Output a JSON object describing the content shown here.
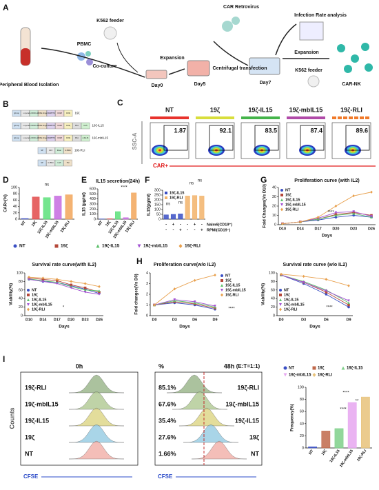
{
  "figure": {
    "panel_labels": [
      "A",
      "B",
      "C",
      "D",
      "E",
      "F",
      "G",
      "H",
      "I"
    ],
    "workflow": {
      "blood": "Peripheral Blood Isolation",
      "pbmc": "PBMC",
      "feeder1": "K562 feeder",
      "coculture": "Co-culture",
      "day0": "Day0",
      "expansion1": "Expansion",
      "day5": "Day5",
      "retrovirus": "CAR Retrovirus",
      "transfection": "Centrifugal transfection",
      "day7": "Day7",
      "analysis": "Infection Rate analysis",
      "expansion2": "Expansion",
      "feeder2": "K562 feeder",
      "car_nk": "CAR-NK"
    },
    "constructs": {
      "rows": [
        {
          "segments": [
            "IgG sp",
            "c-myc",
            "anti-CD19 scFv",
            "CD8a hinge",
            "CD28 TM",
            "CD28",
            "CD3ζ"
          ],
          "label": "19ζ"
        },
        {
          "segments": [
            "IgG sp",
            "c-myc",
            "anti-CD19 scFv",
            "CD8a hinge",
            "CD28 TM",
            "CD28",
            "CD3ζ",
            "P2A",
            "IL15"
          ],
          "label": "19ζ-IL15"
        },
        {
          "segments": [
            "IgG sp",
            "c-myc",
            "anti-CD19 scFv",
            "CD8a hinge",
            "CD28 TM",
            "CD28",
            "CD3ζ",
            "P2A",
            "mbIL15"
          ],
          "label": "19ζ-mbIL15"
        },
        {
          "segments": [
            "SP",
            "IL15",
            "linker",
            "IL15Rα"
          ],
          "label": "19ζ-RLI"
        },
        {
          "segments": [
            "SP",
            "IL15Rα",
            "IL15",
            "TM"
          ]
        }
      ]
    },
    "flow": {
      "titles": [
        "NT",
        "19ζ",
        "19ζ-IL15",
        "19ζ-mbIL15",
        "19ζ-RLI"
      ],
      "values": [
        1.87,
        92.1,
        83.5,
        87.4,
        89.6
      ],
      "bar_colors": [
        "#e8322c",
        "#d8de3c",
        "#44b44a",
        "#b04aa8",
        "#f07a2a"
      ],
      "y_axis": "SSC-A",
      "x_axis": "CAR+"
    },
    "legend": {
      "names": [
        "NT",
        "19ζ",
        "19ζ-IL15",
        "19ζ-mbIL15",
        "19ζ-RLI"
      ],
      "colors": [
        "#3a4fc4",
        "#b5483a",
        "#5cc06a",
        "#a14fd1",
        "#e8a04d"
      ],
      "markers": [
        "circle",
        "square",
        "triangle",
        "triangle-down",
        "diamond"
      ]
    },
    "histograms": {
      "rows": [
        "19ζ-RLI",
        "19ζ-mbIL15",
        "19ζ-IL15",
        "19ζ",
        "NT"
      ],
      "colors": [
        "#8fae7e",
        "#a9c48a",
        "#d9d27a",
        "#8cc7e0",
        "#f0a8a0"
      ],
      "y_axis": "Counts",
      "x_axis": "CFSE",
      "left": {
        "title": "0h"
      },
      "right": {
        "title": "48h",
        "percent_header": "%",
        "ratio": "(E:T=1:1)",
        "percents": [
          "85.1%",
          "67.6%",
          "35.4%",
          "27.6%",
          "1.66%"
        ]
      }
    }
  },
  "chart_data": [
    {
      "type": "bar",
      "ylabel": "CAR+(%)",
      "categories": [
        "NT",
        "19ζ",
        "19ζ-IL15",
        "19ζ-mbIL15",
        "19ζ-RLI"
      ],
      "values": [
        2,
        70,
        68,
        73,
        77
      ],
      "colors": [
        "#3a4fc4",
        "#e24a4a",
        "#5ce07a",
        "#c56ae0",
        "#f2a65a"
      ],
      "ylim": [
        0,
        100
      ],
      "yticks": [
        0,
        20,
        40,
        60,
        80,
        100
      ],
      "annotations": [
        "ns"
      ]
    },
    {
      "type": "bar",
      "title": "IL15 secretion(24h)",
      "ylabel": "IL15 (pg/ml)",
      "categories": [
        "NT",
        "19ζ",
        "19ζ-IL15",
        "19ζ-mbIL15",
        "19ζ-RLI"
      ],
      "values": [
        5,
        8,
        150,
        30,
        520
      ],
      "colors": [
        "#3a4fc4",
        "#e24a4a",
        "#5ce07a",
        "#c56ae0",
        "#f2a65a"
      ],
      "ylim": [
        0,
        600
      ],
      "yticks": [
        0,
        100,
        200,
        300,
        400,
        500,
        600
      ],
      "annotations": [
        "****"
      ]
    },
    {
      "type": "bar",
      "ylabel": "IL15(pg/ml)",
      "series": [
        {
          "name": "19ζ-IL15",
          "color": "#3a4fc4",
          "values": [
            45,
            50,
            55,
            null,
            null,
            null
          ]
        },
        {
          "name": "19ζ-RLI",
          "color": "#f2b36a",
          "values": [
            null,
            null,
            null,
            240,
            245,
            240
          ]
        }
      ],
      "ylim": [
        0,
        300
      ],
      "yticks": [
        0,
        50,
        100,
        150,
        200,
        250,
        300
      ],
      "legend": "upper left",
      "condition_rows": [
        {
          "label": "Nalm6(CD19⁺)",
          "signs": [
            "-",
            "+",
            "-",
            "-",
            "+",
            "-"
          ]
        },
        {
          "label": "RPMI(CD19⁻)",
          "signs": [
            "-",
            "-",
            "+",
            "-",
            "-",
            "+"
          ]
        }
      ],
      "annotations": [
        "ns",
        "ns",
        "ns",
        "ns"
      ]
    },
    {
      "type": "line",
      "title": "Proliferation curve (with IL2)",
      "ylabel": "Fold Changes(Vs D10)",
      "xlabel": "Days",
      "categories": [
        "D10",
        "D14",
        "D17",
        "D20",
        "D23",
        "D26"
      ],
      "ylim": [
        0,
        40
      ],
      "yticks": [
        0,
        10,
        20,
        30,
        40
      ],
      "legend": "upper left",
      "annotations": [
        "****"
      ],
      "series": [
        {
          "name": "NT",
          "color": "#3a4fc4",
          "marker": "circle",
          "values": [
            1,
            3,
            5,
            8,
            10,
            8
          ]
        },
        {
          "name": "19ζ",
          "color": "#b5483a",
          "marker": "square",
          "values": [
            1,
            3,
            6,
            11,
            13,
            10
          ]
        },
        {
          "name": "19ζ-IL15",
          "color": "#5cc06a",
          "marker": "triangle",
          "values": [
            1,
            3,
            6,
            10,
            12,
            8
          ]
        },
        {
          "name": "19ζ-mbIL15",
          "color": "#a14fd1",
          "marker": "triangle-down",
          "values": [
            1,
            3,
            7,
            13,
            14,
            9
          ]
        },
        {
          "name": "19ζ-RLI",
          "color": "#e8a04d",
          "marker": "diamond",
          "values": [
            1,
            3,
            8,
            20,
            31,
            35
          ]
        }
      ]
    },
    {
      "type": "line",
      "title": "Survival rate curve(with IL2)",
      "ylabel": "Viability(%)",
      "xlabel": "Days",
      "categories": [
        "D10",
        "D14",
        "D17",
        "D20",
        "D23",
        "D26"
      ],
      "ylim": [
        0,
        100
      ],
      "yticks": [
        0,
        20,
        40,
        60,
        80,
        100
      ],
      "legend": "lower left",
      "annotations": [
        "*"
      ],
      "series": [
        {
          "name": "NT",
          "color": "#3a4fc4",
          "marker": "circle",
          "values": [
            85,
            80,
            78,
            70,
            62,
            52
          ]
        },
        {
          "name": "19ζ",
          "color": "#b5483a",
          "marker": "square",
          "values": [
            88,
            85,
            82,
            72,
            65,
            55
          ]
        },
        {
          "name": "19ζ-IL15",
          "color": "#5cc06a",
          "marker": "triangle",
          "values": [
            86,
            82,
            78,
            68,
            60,
            58
          ]
        },
        {
          "name": "19ζ-mbIL15",
          "color": "#a14fd1",
          "marker": "triangle-down",
          "values": [
            85,
            80,
            75,
            65,
            55,
            50
          ]
        },
        {
          "name": "19ζ-RLI",
          "color": "#e8a04d",
          "marker": "diamond",
          "values": [
            90,
            88,
            85,
            80,
            75,
            68
          ]
        }
      ]
    },
    {
      "type": "line",
      "title": "Proliferation curve(w/o IL2)",
      "ylabel": "Fold changes(Vs D0)",
      "xlabel": "Days",
      "categories": [
        "D0",
        "D3",
        "D6",
        "D9"
      ],
      "ylim": [
        0,
        4
      ],
      "yticks": [
        0,
        1,
        2,
        3,
        4
      ],
      "legend": "right",
      "annotations": [
        "****"
      ],
      "series": [
        {
          "name": "NT",
          "color": "#3a4fc4",
          "marker": "circle",
          "values": [
            1,
            1.2,
            1.0,
            0.6
          ]
        },
        {
          "name": "19ζ",
          "color": "#b5483a",
          "marker": "square",
          "values": [
            1,
            1.3,
            1.1,
            0.7
          ]
        },
        {
          "name": "19ζ-IL15",
          "color": "#5cc06a",
          "marker": "triangle",
          "values": [
            1,
            1.4,
            1.2,
            0.8
          ]
        },
        {
          "name": "19ζ-mbIL15",
          "color": "#a14fd1",
          "marker": "triangle-down",
          "values": [
            1,
            1.5,
            1.3,
            0.9
          ]
        },
        {
          "name": "19ζ-RLI",
          "color": "#e8a04d",
          "marker": "diamond",
          "values": [
            1,
            2.5,
            3.3,
            3.8
          ]
        }
      ]
    },
    {
      "type": "line",
      "title": "Survival rate curve (w/o IL2)",
      "ylabel": "Viability(%)",
      "xlabel": "Days",
      "categories": [
        "D0",
        "D3",
        "D6",
        "D9"
      ],
      "ylim": [
        0,
        100
      ],
      "yticks": [
        0,
        20,
        40,
        60,
        80,
        100
      ],
      "legend": "lower left",
      "annotations": [
        "****"
      ],
      "series": [
        {
          "name": "NT",
          "color": "#3a4fc4",
          "marker": "circle",
          "values": [
            95,
            75,
            50,
            20
          ]
        },
        {
          "name": "19ζ",
          "color": "#b5483a",
          "marker": "square",
          "values": [
            95,
            78,
            55,
            25
          ]
        },
        {
          "name": "19ζ-IL15",
          "color": "#5cc06a",
          "marker": "triangle",
          "values": [
            95,
            80,
            60,
            30
          ]
        },
        {
          "name": "19ζ-mbIL15",
          "color": "#a14fd1",
          "marker": "triangle-down",
          "values": [
            95,
            78,
            58,
            35
          ]
        },
        {
          "name": "19ζ-RLI",
          "color": "#e8a04d",
          "marker": "diamond",
          "values": [
            97,
            92,
            85,
            70
          ]
        }
      ]
    },
    {
      "type": "bar",
      "ylabel": "Frequency(%)",
      "categories": [
        "NT",
        "19ζ",
        "19ζ-IL15",
        "19ζ-mbIL15",
        "19ζ-RLI"
      ],
      "values": [
        2,
        28,
        32,
        75,
        84
      ],
      "colors": [
        "#3a4fc4",
        "#c0684a",
        "#7fd08a",
        "#e6a6f0",
        "#e8c27a"
      ],
      "markers": [
        "circle",
        "square",
        "triangle",
        "triangle-down",
        "diamond"
      ],
      "legend": "top",
      "ylim": [
        0,
        100
      ],
      "yticks": [
        0,
        20,
        40,
        60,
        80,
        100
      ],
      "annotations": [
        "****",
        "**",
        "****"
      ]
    }
  ]
}
